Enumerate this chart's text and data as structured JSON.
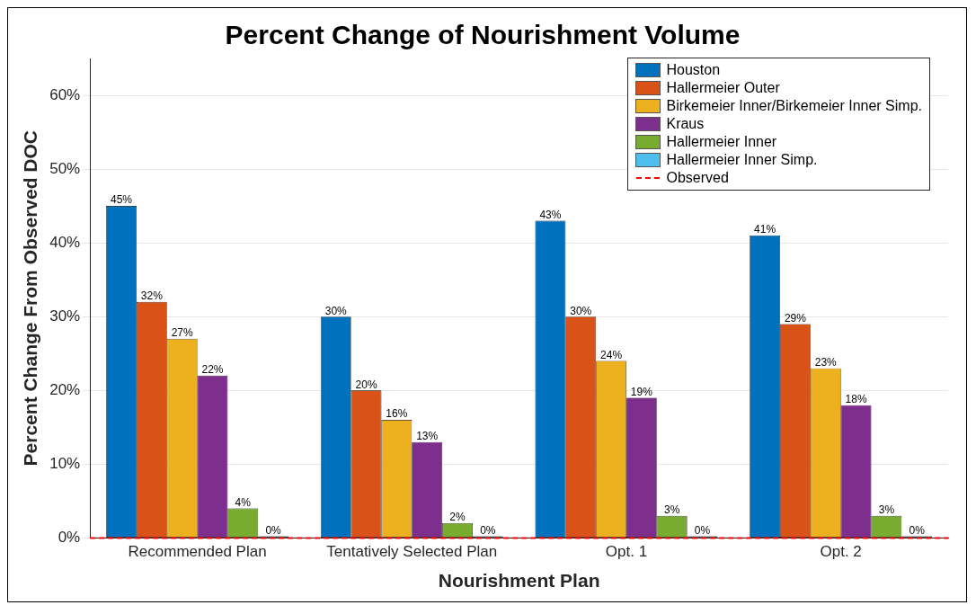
{
  "chart_data": {
    "type": "bar",
    "title": "Percent Change of Nourishment Volume",
    "xlabel": "Nourishment Plan",
    "ylabel": "Percent Change From Observed DOC",
    "categories": [
      "Recommended Plan",
      "Tentatively Selected Plan",
      "Opt. 1",
      "Opt. 2"
    ],
    "series": [
      {
        "name": "Houston",
        "color": "#0072bd",
        "values": [
          45,
          30,
          43,
          41
        ],
        "value_labels": [
          "45%",
          "30%",
          "43%",
          "41%"
        ]
      },
      {
        "name": "Hallermeier Outer",
        "color": "#d95319",
        "values": [
          32,
          20,
          30,
          29
        ],
        "value_labels": [
          "32%",
          "20%",
          "30%",
          "29%"
        ]
      },
      {
        "name": "Birkemeier Inner/Birkemeier Inner Simp.",
        "color": "#edb120",
        "values": [
          27,
          16,
          24,
          23
        ],
        "value_labels": [
          "27%",
          "16%",
          "24%",
          "23%"
        ]
      },
      {
        "name": "Kraus",
        "color": "#7e2f8e",
        "values": [
          22,
          13,
          19,
          18
        ],
        "value_labels": [
          "22%",
          "13%",
          "19%",
          "18%"
        ]
      },
      {
        "name": "Hallermeier Inner",
        "color": "#77ac30",
        "values": [
          4,
          2,
          3,
          3
        ],
        "value_labels": [
          "4%",
          "2%",
          "3%",
          "3%"
        ]
      },
      {
        "name": "Hallermeier Inner Simp.",
        "color": "#4dbeee",
        "values": [
          0,
          0,
          0,
          0
        ],
        "value_labels": [
          "0%",
          "0%",
          "0%",
          "0%"
        ]
      }
    ],
    "ylim": [
      0,
      65
    ],
    "yticks": [
      {
        "value": 0,
        "label": "0%"
      },
      {
        "value": 10,
        "label": "10%"
      },
      {
        "value": 20,
        "label": "20%"
      },
      {
        "value": 30,
        "label": "30%"
      },
      {
        "value": 40,
        "label": "40%"
      },
      {
        "value": 50,
        "label": "50%"
      },
      {
        "value": 60,
        "label": "60%"
      }
    ],
    "ref_lines": [
      {
        "axis": "y",
        "value": 0,
        "label": "Observed",
        "color": "#ff0000",
        "line_style": "dashed"
      }
    ],
    "grid": "y",
    "legend": "top right"
  }
}
